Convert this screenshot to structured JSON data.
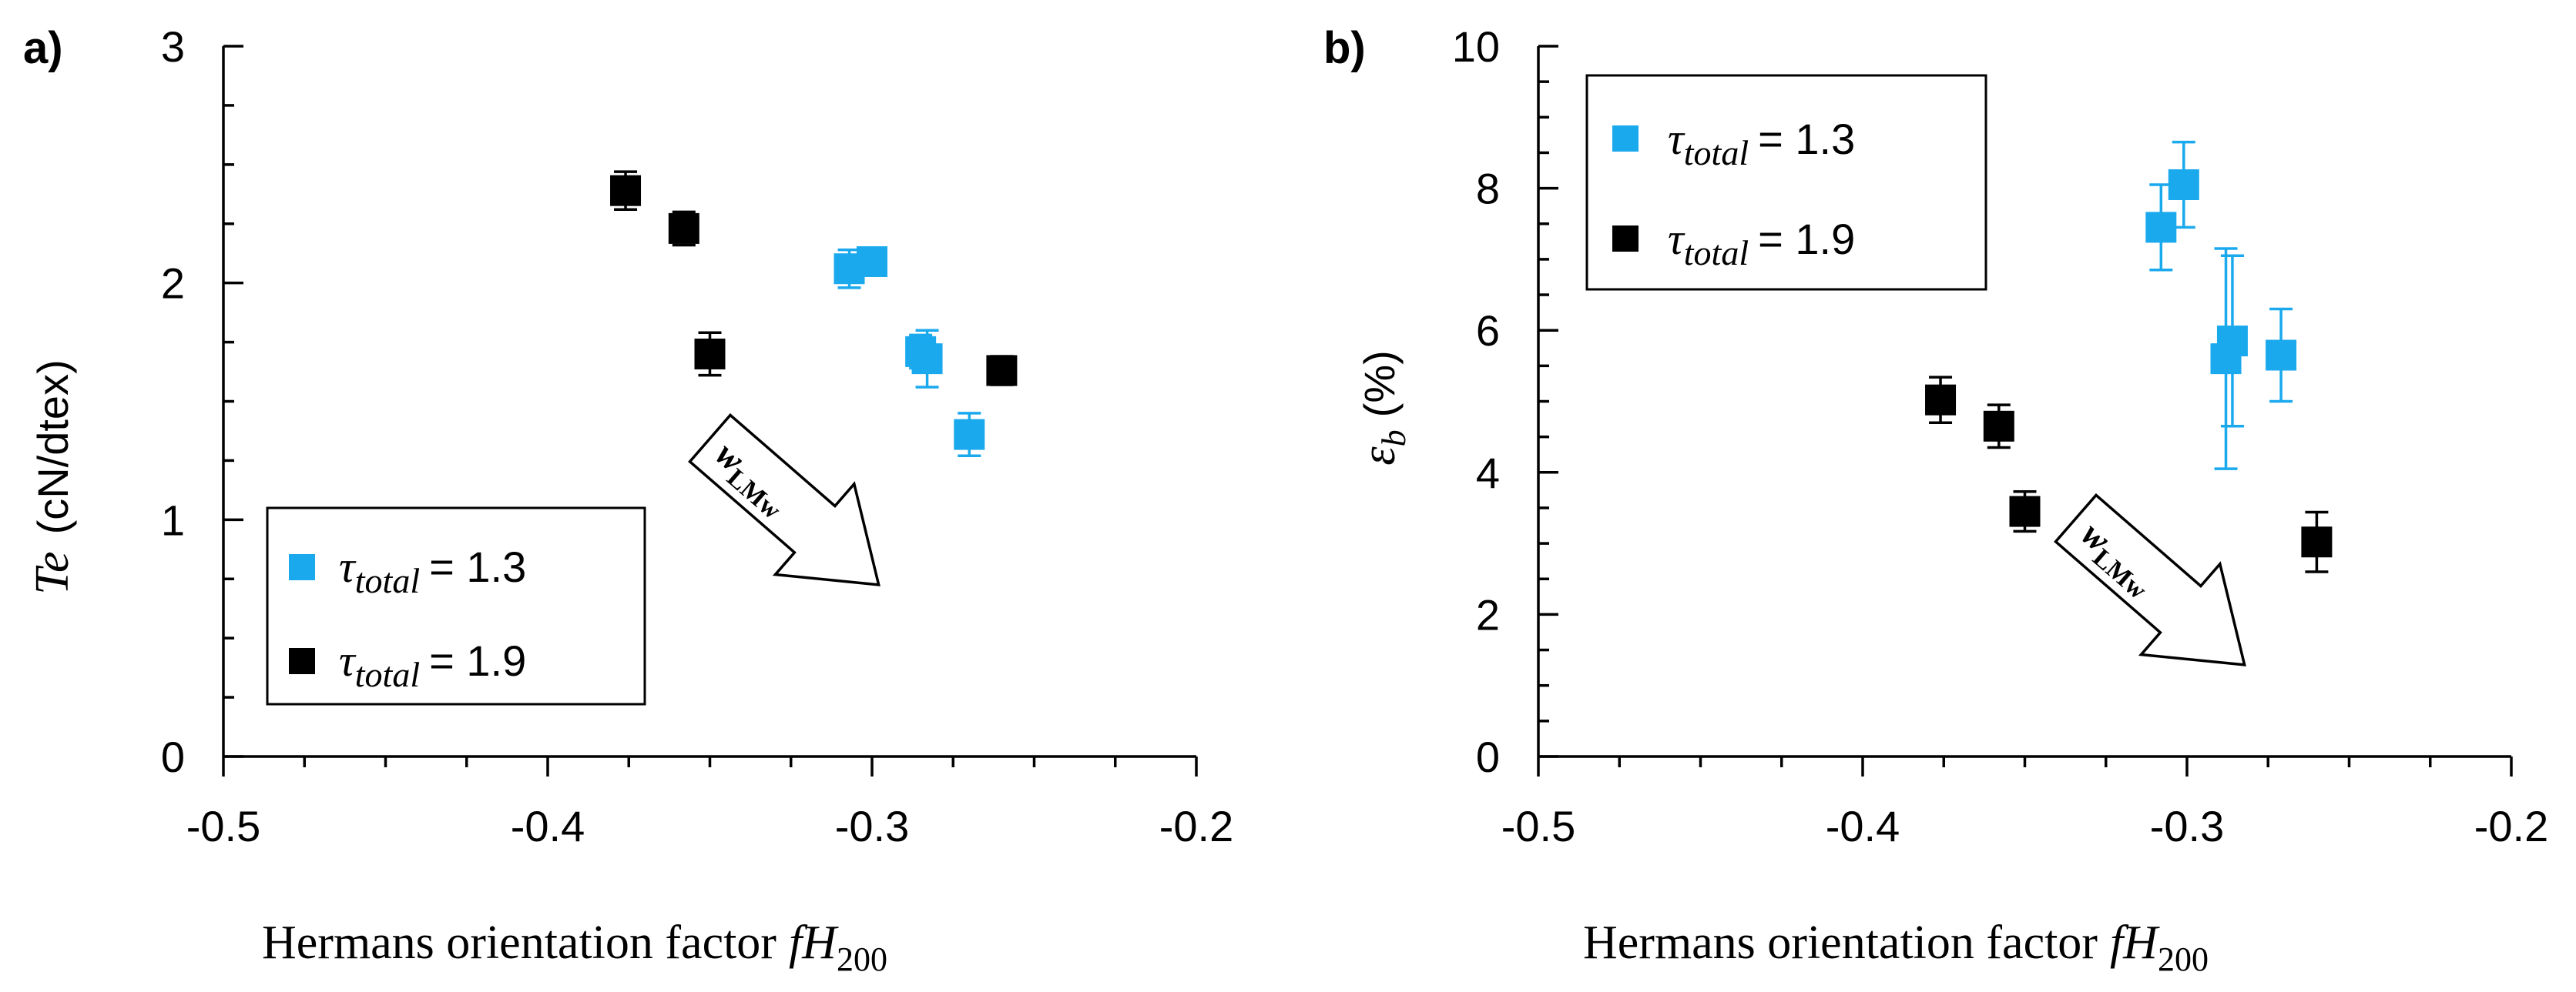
{
  "chart_data": [
    {
      "panel": "a)",
      "type": "scatter",
      "xlabel": "Hermans orientation factor",
      "xlabel_symbol": "fH",
      "xlabel_sub": "200",
      "ylabel_symbol": "Te",
      "ylabel_unit": "(cN/dtex)",
      "xlim": [
        -0.5,
        -0.2
      ],
      "ylim": [
        0,
        3
      ],
      "xticks": [
        -0.5,
        -0.4,
        -0.3,
        -0.2
      ],
      "xtick_labels": [
        "-0.5",
        "-0.4",
        "-0.3",
        "-0.2"
      ],
      "yticks": [
        0,
        1,
        2,
        3
      ],
      "ytick_labels": [
        "0",
        "1",
        "2",
        "3"
      ],
      "legend_position": "bottom-left",
      "annotation": {
        "text": "w",
        "sub": "LMw"
      },
      "series": [
        {
          "name": "τ_total = 1.3",
          "legend_symbol": "τ",
          "legend_sub": "total",
          "legend_value": "= 1.3",
          "color": "#1ba9ee",
          "x": [
            -0.307,
            -0.3,
            -0.285,
            -0.283,
            -0.27
          ],
          "y": [
            2.06,
            2.09,
            1.71,
            1.68,
            1.36
          ],
          "err": [
            0.08,
            0.05,
            0.07,
            0.12,
            0.09
          ]
        },
        {
          "name": "τ_total = 1.9",
          "legend_symbol": "τ",
          "legend_sub": "total",
          "legend_value": "= 1.9",
          "color": "#000000",
          "x": [
            -0.376,
            -0.358,
            -0.35,
            -0.26
          ],
          "y": [
            2.39,
            2.23,
            1.7,
            1.63
          ],
          "err": [
            0.08,
            0.07,
            0.09,
            0.06
          ]
        }
      ]
    },
    {
      "panel": "b)",
      "type": "scatter",
      "xlabel": "Hermans orientation factor",
      "xlabel_symbol": "fH",
      "xlabel_sub": "200",
      "ylabel_symbol": "ε",
      "ylabel_sub": "b",
      "ylabel_unit": "(%)",
      "xlim": [
        -0.5,
        -0.2
      ],
      "ylim": [
        0,
        10
      ],
      "xticks": [
        -0.5,
        -0.4,
        -0.3,
        -0.2
      ],
      "xtick_labels": [
        "-0.5",
        "-0.4",
        "-0.3",
        "-0.2"
      ],
      "yticks": [
        0,
        2,
        4,
        6,
        8,
        10
      ],
      "ytick_labels": [
        "0",
        "2",
        "4",
        "6",
        "8",
        "10"
      ],
      "legend_position": "top-left",
      "annotation": {
        "text": "w",
        "sub": "LMw"
      },
      "series": [
        {
          "name": "τ_total = 1.3",
          "legend_symbol": "τ",
          "legend_sub": "total",
          "legend_value": "= 1.3",
          "color": "#1ba9ee",
          "x": [
            -0.308,
            -0.301,
            -0.288,
            -0.286,
            -0.271
          ],
          "y": [
            7.45,
            8.05,
            5.6,
            5.85,
            5.65
          ],
          "err": [
            0.6,
            0.6,
            1.55,
            1.2,
            0.65
          ]
        },
        {
          "name": "τ_total = 1.9",
          "legend_symbol": "τ",
          "legend_sub": "total",
          "legend_value": "= 1.9",
          "color": "#000000",
          "x": [
            -0.376,
            -0.358,
            -0.35,
            -0.26
          ],
          "y": [
            5.02,
            4.65,
            3.45,
            3.02
          ],
          "err": [
            0.32,
            0.3,
            0.28,
            0.42
          ]
        }
      ]
    }
  ]
}
